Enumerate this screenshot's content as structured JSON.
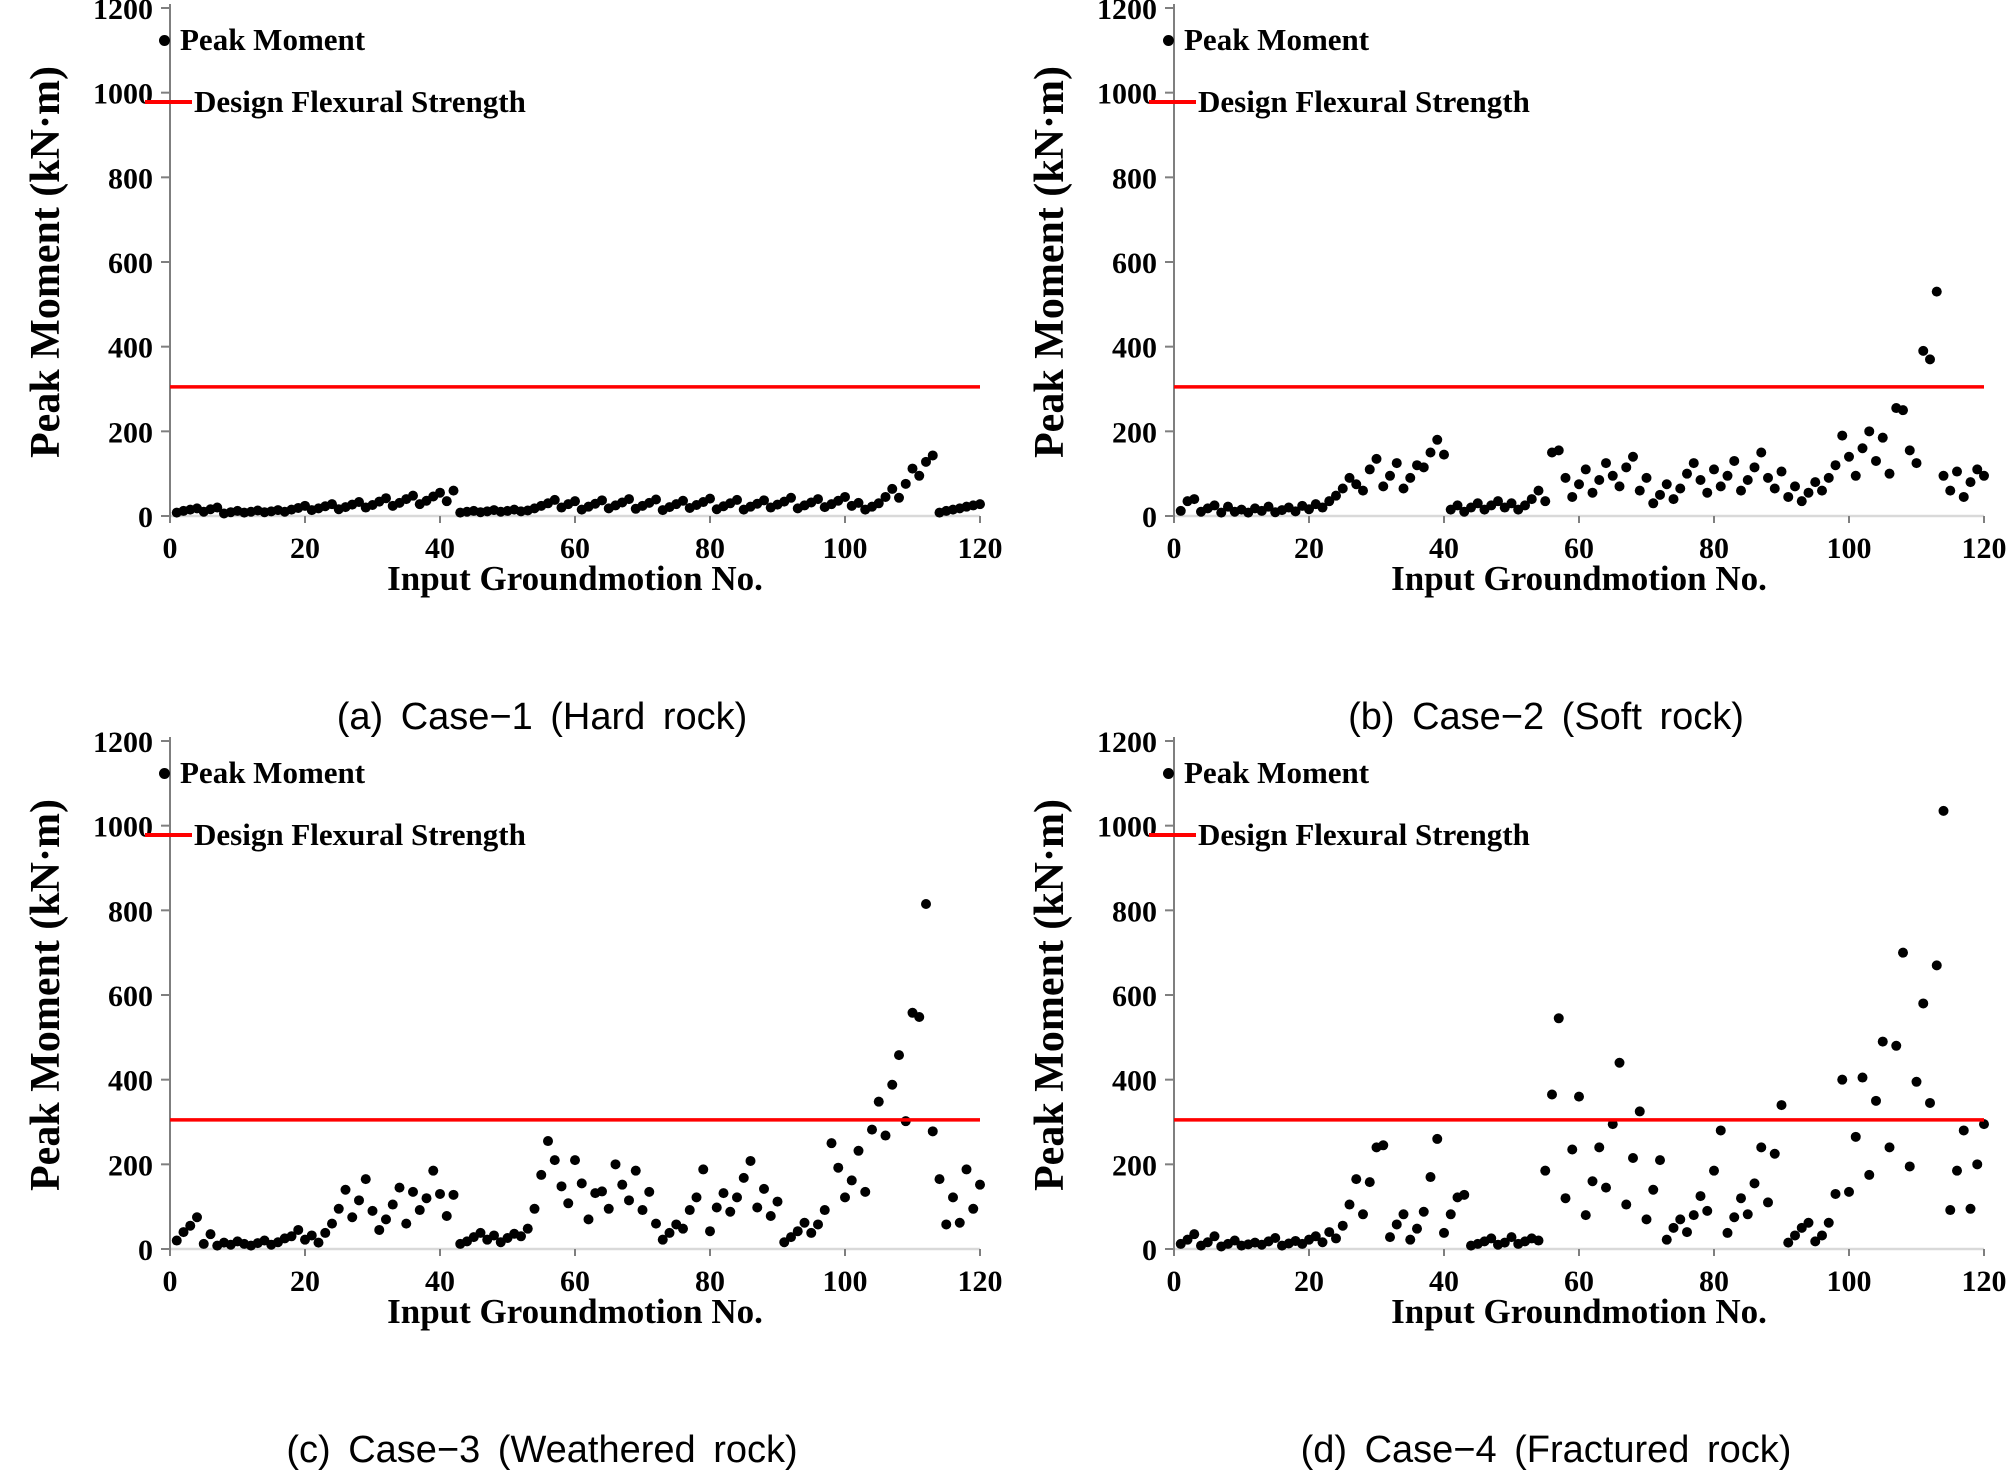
{
  "design_strength_note": "red horizontal reference line shown in every panel",
  "chart_data": [
    {
      "type": "scatter",
      "panel": "a",
      "caption": "(a) Case−1 (Hard rock)",
      "xlabel": "Input Groundmotion No.",
      "ylabel": "Peak Moment (kN·m)",
      "xlim": [
        0,
        120
      ],
      "ylim": [
        0,
        1200
      ],
      "xticks": [
        0,
        20,
        40,
        60,
        80,
        100,
        120
      ],
      "yticks": [
        0,
        200,
        400,
        600,
        800,
        1000,
        1200
      ],
      "design_flexural_strength": 305,
      "legend": [
        {
          "marker": "dot",
          "label": "Peak Moment",
          "color": "#000000"
        },
        {
          "marker": "line",
          "label": "Design Flexural Strength",
          "color": "#ff0000"
        }
      ],
      "x_start": 1,
      "values": [
        8,
        12,
        15,
        18,
        10,
        16,
        20,
        6,
        9,
        12,
        8,
        10,
        13,
        9,
        11,
        14,
        10,
        15,
        19,
        24,
        14,
        18,
        23,
        28,
        16,
        21,
        27,
        33,
        20,
        26,
        34,
        42,
        24,
        31,
        40,
        48,
        28,
        36,
        46,
        55,
        35,
        60,
        8,
        10,
        12,
        9,
        11,
        14,
        10,
        12,
        15,
        11,
        13,
        18,
        24,
        30,
        38,
        20,
        28,
        35,
        15,
        22,
        29,
        37,
        18,
        25,
        32,
        40,
        17,
        24,
        31,
        39,
        14,
        21,
        28,
        36,
        19,
        26,
        33,
        41,
        16,
        23,
        30,
        38,
        15,
        22,
        29,
        37,
        20,
        27,
        34,
        43,
        18,
        25,
        32,
        40,
        21,
        28,
        36,
        45,
        24,
        31,
        15,
        22,
        30,
        45,
        64,
        43,
        76,
        112,
        95,
        128,
        143,
        8,
        12,
        15,
        18,
        22,
        25,
        28
      ]
    },
    {
      "type": "scatter",
      "panel": "b",
      "caption": "(b) Case−2 (Soft rock)",
      "xlabel": "Input Groundmotion No.",
      "ylabel": "Peak Moment (kN·m)",
      "xlim": [
        0,
        120
      ],
      "ylim": [
        0,
        1200
      ],
      "xticks": [
        0,
        20,
        40,
        60,
        80,
        100,
        120
      ],
      "yticks": [
        0,
        200,
        400,
        600,
        800,
        1000,
        1200
      ],
      "design_flexural_strength": 305,
      "legend": [
        {
          "marker": "dot",
          "label": "Peak Moment",
          "color": "#000000"
        },
        {
          "marker": "line",
          "label": "Design Flexural Strength",
          "color": "#ff0000"
        }
      ],
      "x_start": 1,
      "values": [
        12,
        35,
        40,
        10,
        18,
        25,
        8,
        22,
        10,
        15,
        8,
        18,
        12,
        22,
        9,
        14,
        20,
        11,
        24,
        16,
        28,
        20,
        35,
        48,
        65,
        90,
        75,
        60,
        110,
        135,
        70,
        95,
        125,
        65,
        90,
        120,
        115,
        150,
        180,
        145,
        15,
        25,
        10,
        20,
        30,
        15,
        25,
        35,
        20,
        30,
        15,
        25,
        40,
        60,
        35,
        150,
        155,
        90,
        45,
        75,
        110,
        55,
        85,
        125,
        95,
        70,
        115,
        140,
        60,
        90,
        30,
        50,
        75,
        40,
        65,
        100,
        125,
        85,
        55,
        110,
        70,
        95,
        130,
        60,
        85,
        115,
        150,
        90,
        65,
        105,
        45,
        70,
        35,
        55,
        80,
        60,
        90,
        120,
        190,
        140,
        95,
        160,
        200,
        130,
        185,
        100,
        255,
        250,
        155,
        125,
        390,
        370,
        530,
        95,
        60,
        105,
        45,
        80,
        110,
        95
      ]
    },
    {
      "type": "scatter",
      "panel": "c",
      "caption": "(c) Case−3 (Weathered rock)",
      "xlabel": "Input Groundmotion No.",
      "ylabel": "Peak Moment (kN·m)",
      "xlim": [
        0,
        120
      ],
      "ylim": [
        0,
        1200
      ],
      "xticks": [
        0,
        20,
        40,
        60,
        80,
        100,
        120
      ],
      "yticks": [
        0,
        200,
        400,
        600,
        800,
        1000,
        1200
      ],
      "design_flexural_strength": 305,
      "legend": [
        {
          "marker": "dot",
          "label": "Peak Moment",
          "color": "#000000"
        },
        {
          "marker": "line",
          "label": "Design Flexural Strength",
          "color": "#ff0000"
        }
      ],
      "x_start": 1,
      "values": [
        20,
        40,
        55,
        75,
        12,
        35,
        8,
        15,
        10,
        18,
        12,
        8,
        14,
        20,
        10,
        16,
        25,
        30,
        45,
        22,
        32,
        15,
        38,
        60,
        95,
        140,
        75,
        115,
        165,
        90,
        45,
        70,
        105,
        145,
        60,
        135,
        92,
        120,
        185,
        130,
        78,
        128,
        12,
        18,
        28,
        38,
        22,
        32,
        16,
        26,
        36,
        30,
        48,
        95,
        175,
        255,
        210,
        148,
        108,
        210,
        155,
        70,
        132,
        136,
        95,
        200,
        152,
        115,
        185,
        92,
        135,
        60,
        22,
        38,
        58,
        48,
        92,
        122,
        188,
        42,
        98,
        132,
        88,
        122,
        168,
        208,
        98,
        142,
        78,
        112,
        16,
        28,
        42,
        62,
        38,
        58,
        92,
        250,
        192,
        122,
        162,
        232,
        135,
        282,
        348,
        268,
        388,
        458,
        302,
        558,
        548,
        815,
        278,
        165,
        58,
        122,
        62,
        188,
        95,
        152
      ]
    },
    {
      "type": "scatter",
      "panel": "d",
      "caption": "(d) Case−4 (Fractured rock)",
      "xlabel": "Input Groundmotion No.",
      "ylabel": "Peak Moment (kN·m)",
      "xlim": [
        0,
        120
      ],
      "ylim": [
        0,
        1200
      ],
      "xticks": [
        0,
        20,
        40,
        60,
        80,
        100,
        120
      ],
      "yticks": [
        0,
        200,
        400,
        600,
        800,
        1000,
        1200
      ],
      "design_flexural_strength": 305,
      "legend": [
        {
          "marker": "dot",
          "label": "Peak Moment",
          "color": "#000000"
        },
        {
          "marker": "line",
          "label": "Design Flexural Strength",
          "color": "#ff0000"
        }
      ],
      "x_start": 1,
      "values": [
        12,
        22,
        35,
        8,
        16,
        30,
        6,
        12,
        20,
        8,
        11,
        15,
        10,
        18,
        26,
        8,
        13,
        19,
        12,
        22,
        30,
        16,
        40,
        25,
        55,
        105,
        165,
        82,
        158,
        240,
        245,
        28,
        58,
        82,
        22,
        48,
        88,
        170,
        260,
        38,
        82,
        122,
        128,
        8,
        12,
        18,
        25,
        10,
        15,
        28,
        12,
        18,
        25,
        20,
        185,
        365,
        545,
        120,
        235,
        360,
        80,
        160,
        240,
        145,
        295,
        440,
        105,
        215,
        325,
        70,
        140,
        210,
        22,
        50,
        70,
        40,
        80,
        125,
        90,
        185,
        280,
        38,
        75,
        120,
        82,
        155,
        240,
        110,
        225,
        340,
        15,
        32,
        50,
        62,
        18,
        32,
        62,
        130,
        400,
        135,
        265,
        405,
        175,
        350,
        490,
        240,
        480,
        700,
        195,
        395,
        580,
        345,
        670,
        1035,
        92,
        185,
        280,
        95,
        200,
        295
      ]
    }
  ],
  "style": {
    "point_color": "#000000",
    "design_line_color": "#ff0000",
    "y_axis_color": "#7f7f7f",
    "x_axis_color": "#d9d9d9"
  }
}
